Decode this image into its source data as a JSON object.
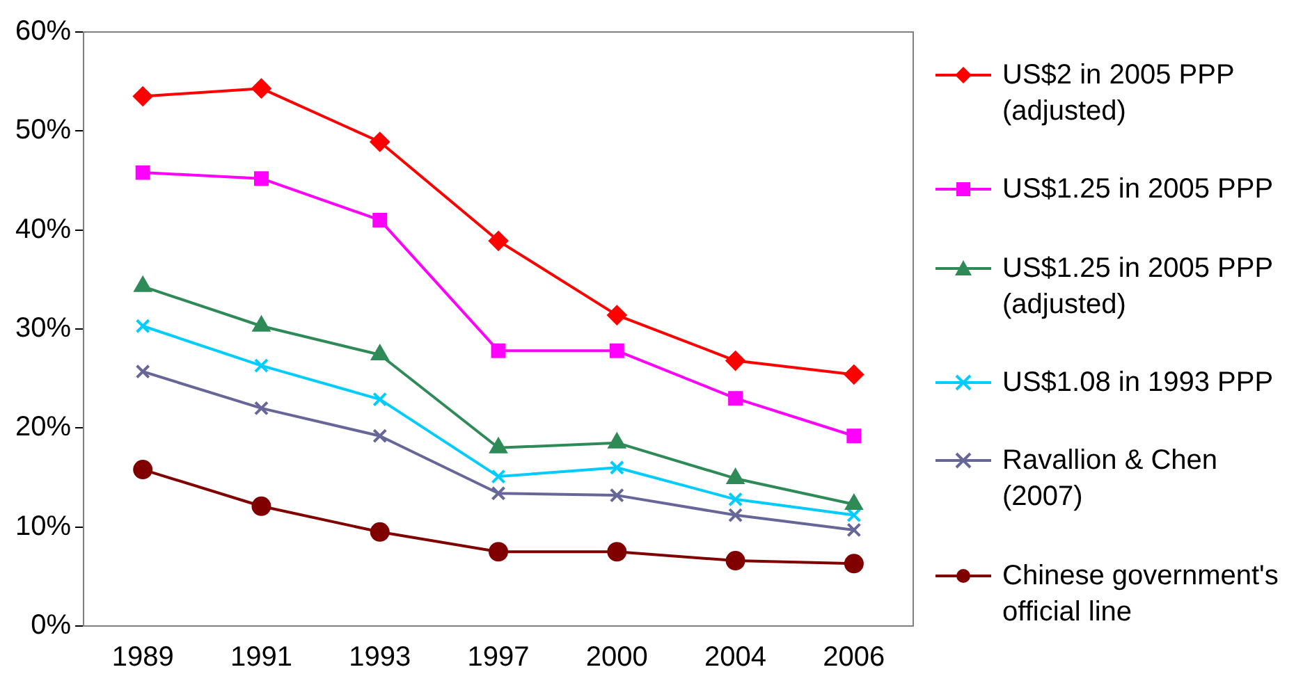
{
  "chart_data": {
    "type": "line",
    "categories": [
      "1989",
      "1991",
      "1993",
      "1997",
      "2000",
      "2004",
      "2006"
    ],
    "series": [
      {
        "name": "US$2 in 2005 PPP (adjusted)",
        "color": "#ff0000",
        "marker": "diamond",
        "values": [
          53.5,
          54.3,
          48.9,
          38.9,
          31.4,
          26.8,
          25.4
        ]
      },
      {
        "name": "US$1.25 in 2005 PPP",
        "color": "#ff00ff",
        "marker": "square",
        "values": [
          45.8,
          45.2,
          41.0,
          27.8,
          27.8,
          23.0,
          19.2
        ]
      },
      {
        "name": "US$1.25 in 2005 PPP (adjusted)",
        "color": "#2e8b57",
        "marker": "triangle",
        "values": [
          34.3,
          30.3,
          27.4,
          18.0,
          18.5,
          14.9,
          12.3
        ]
      },
      {
        "name": "US$1.08 in 1993 PPP",
        "color": "#00ccff",
        "marker": "cross",
        "values": [
          30.3,
          26.3,
          22.9,
          15.1,
          16.0,
          12.8,
          11.2
        ]
      },
      {
        "name": "Ravallion & Chen (2007)",
        "color": "#666699",
        "marker": "cross",
        "values": [
          25.7,
          22.0,
          19.2,
          13.4,
          13.2,
          11.2,
          9.7
        ]
      },
      {
        "name": "Chinese government's official line",
        "color": "#800000",
        "marker": "circle",
        "values": [
          15.8,
          12.1,
          9.5,
          7.5,
          7.5,
          6.6,
          6.3
        ]
      }
    ],
    "ylim": [
      0,
      60
    ],
    "yticks": [
      {
        "value": 0,
        "label": "0%"
      },
      {
        "value": 10,
        "label": "10%"
      },
      {
        "value": 20,
        "label": "20%"
      },
      {
        "value": 30,
        "label": "30%"
      },
      {
        "value": 40,
        "label": "40%"
      },
      {
        "value": 50,
        "label": "50%"
      },
      {
        "value": 60,
        "label": "60%"
      }
    ],
    "grid": false,
    "legend": "right",
    "line_style": "solid"
  }
}
